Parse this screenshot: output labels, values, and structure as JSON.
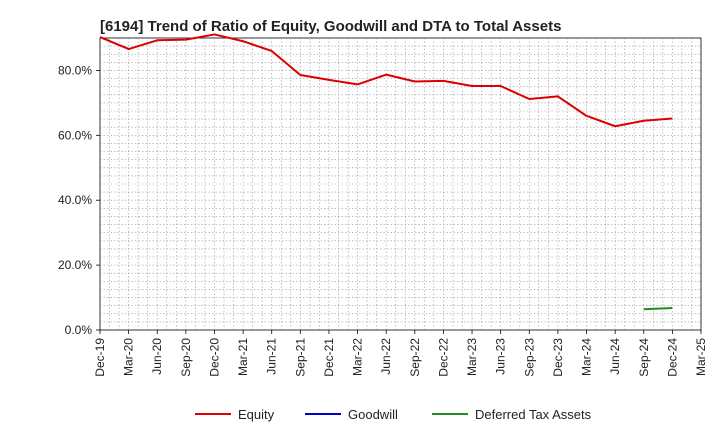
{
  "chart_data": {
    "type": "line",
    "title": "[6194]  Trend of Ratio of Equity, Goodwill and DTA to Total Assets",
    "xlabel": "",
    "ylabel": "",
    "ylim": [
      0,
      0.9
    ],
    "grid": true,
    "legend_position": "bottom",
    "y_ticks": [
      0.0,
      0.2,
      0.4,
      0.6,
      0.8
    ],
    "y_tick_labels": [
      "0.0%",
      "20.0%",
      "40.0%",
      "60.0%",
      "80.0%"
    ],
    "x_tick_labels": [
      "Dec-19",
      "Mar-20",
      "Jun-20",
      "Sep-20",
      "Dec-20",
      "Mar-21",
      "Jun-21",
      "Sep-21",
      "Dec-21",
      "Mar-22",
      "Jun-22",
      "Sep-22",
      "Dec-22",
      "Mar-23",
      "Jun-23",
      "Sep-23",
      "Dec-23",
      "Mar-24",
      "Jun-24",
      "Sep-24",
      "Dec-24",
      "Mar-25"
    ],
    "series": [
      {
        "name": "Equity",
        "color": "#dd0000",
        "values": [
          0.903,
          0.866,
          0.893,
          0.895,
          0.911,
          0.89,
          0.86,
          0.786,
          0.771,
          0.757,
          0.787,
          0.766,
          0.768,
          0.752,
          0.752,
          0.712,
          0.72,
          0.66,
          0.628,
          0.645,
          0.652,
          null
        ]
      },
      {
        "name": "Goodwill",
        "color": "#0000cc",
        "values": [
          null,
          null,
          null,
          null,
          null,
          null,
          null,
          null,
          null,
          null,
          null,
          null,
          null,
          null,
          null,
          null,
          null,
          null,
          null,
          null,
          null,
          null
        ]
      },
      {
        "name": "Deferred Tax Assets",
        "color": "#228b22",
        "values": [
          null,
          null,
          null,
          null,
          null,
          null,
          null,
          null,
          null,
          null,
          null,
          null,
          null,
          null,
          null,
          null,
          null,
          null,
          null,
          0.064,
          0.068,
          null
        ]
      }
    ]
  }
}
